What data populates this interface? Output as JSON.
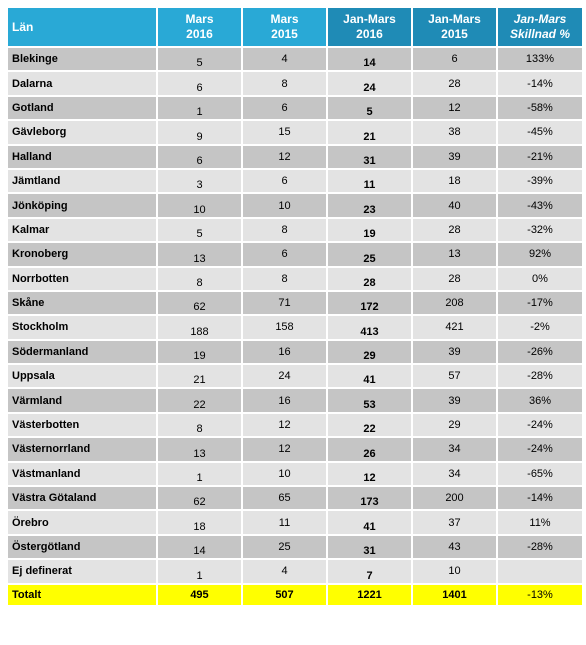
{
  "headers": {
    "lan": "Län",
    "mars2016": [
      "Mars",
      "2016"
    ],
    "mars2015": [
      "Mars",
      "2015"
    ],
    "janmars2016": [
      "Jan-Mars",
      "2016"
    ],
    "janmars2015": [
      "Jan-Mars",
      "2015"
    ],
    "skillnad": [
      "Jan-Mars",
      "Skillnad %"
    ]
  },
  "rows": [
    {
      "name": "Blekinge",
      "m16": "5",
      "m15": "4",
      "j16": "14",
      "j15": "6",
      "pct": "133%"
    },
    {
      "name": "Dalarna",
      "m16": "6",
      "m15": "8",
      "j16": "24",
      "j15": "28",
      "pct": "-14%"
    },
    {
      "name": "Gotland",
      "m16": "1",
      "m15": "6",
      "j16": "5",
      "j15": "12",
      "pct": "-58%"
    },
    {
      "name": "Gävleborg",
      "m16": "9",
      "m15": "15",
      "j16": "21",
      "j15": "38",
      "pct": "-45%"
    },
    {
      "name": "Halland",
      "m16": "6",
      "m15": "12",
      "j16": "31",
      "j15": "39",
      "pct": "-21%"
    },
    {
      "name": "Jämtland",
      "m16": "3",
      "m15": "6",
      "j16": "11",
      "j15": "18",
      "pct": "-39%"
    },
    {
      "name": "Jönköping",
      "m16": "10",
      "m15": "10",
      "j16": "23",
      "j15": "40",
      "pct": "-43%"
    },
    {
      "name": "Kalmar",
      "m16": "5",
      "m15": "8",
      "j16": "19",
      "j15": "28",
      "pct": "-32%"
    },
    {
      "name": "Kronoberg",
      "m16": "13",
      "m15": "6",
      "j16": "25",
      "j15": "13",
      "pct": "92%"
    },
    {
      "name": "Norrbotten",
      "m16": "8",
      "m15": "8",
      "j16": "28",
      "j15": "28",
      "pct": "0%"
    },
    {
      "name": "Skåne",
      "m16": "62",
      "m15": "71",
      "j16": "172",
      "j15": "208",
      "pct": "-17%"
    },
    {
      "name": "Stockholm",
      "m16": "188",
      "m15": "158",
      "j16": "413",
      "j15": "421",
      "pct": "-2%"
    },
    {
      "name": "Södermanland",
      "m16": "19",
      "m15": "16",
      "j16": "29",
      "j15": "39",
      "pct": "-26%"
    },
    {
      "name": "Uppsala",
      "m16": "21",
      "m15": "24",
      "j16": "41",
      "j15": "57",
      "pct": "-28%"
    },
    {
      "name": "Värmland",
      "m16": "22",
      "m15": "16",
      "j16": "53",
      "j15": "39",
      "pct": "36%"
    },
    {
      "name": "Västerbotten",
      "m16": "8",
      "m15": "12",
      "j16": "22",
      "j15": "29",
      "pct": "-24%"
    },
    {
      "name": "Västernorrland",
      "m16": "13",
      "m15": "12",
      "j16": "26",
      "j15": "34",
      "pct": "-24%"
    },
    {
      "name": "Västmanland",
      "m16": "1",
      "m15": "10",
      "j16": "12",
      "j15": "34",
      "pct": "-65%"
    },
    {
      "name": "Västra Götaland",
      "m16": "62",
      "m15": "65",
      "j16": "173",
      "j15": "200",
      "pct": "-14%"
    },
    {
      "name": "Örebro",
      "m16": "18",
      "m15": "11",
      "j16": "41",
      "j15": "37",
      "pct": "11%"
    },
    {
      "name": "Östergötland",
      "m16": "14",
      "m15": "25",
      "j16": "31",
      "j15": "43",
      "pct": "-28%"
    },
    {
      "name": "Ej definerat",
      "m16": "1",
      "m15": "4",
      "j16": "7",
      "j15": "10",
      "pct": ""
    }
  ],
  "total": {
    "name": "Totalt",
    "m16": "495",
    "m15": "507",
    "j16": "1221",
    "j15": "1401",
    "pct": "-13%"
  },
  "colors": {
    "header_light": "#29a9d6",
    "header_dark": "#1f8bb6",
    "row_dark": "#c5c5c5",
    "row_light": "#e3e3e3",
    "total_bg": "#ffff00"
  }
}
